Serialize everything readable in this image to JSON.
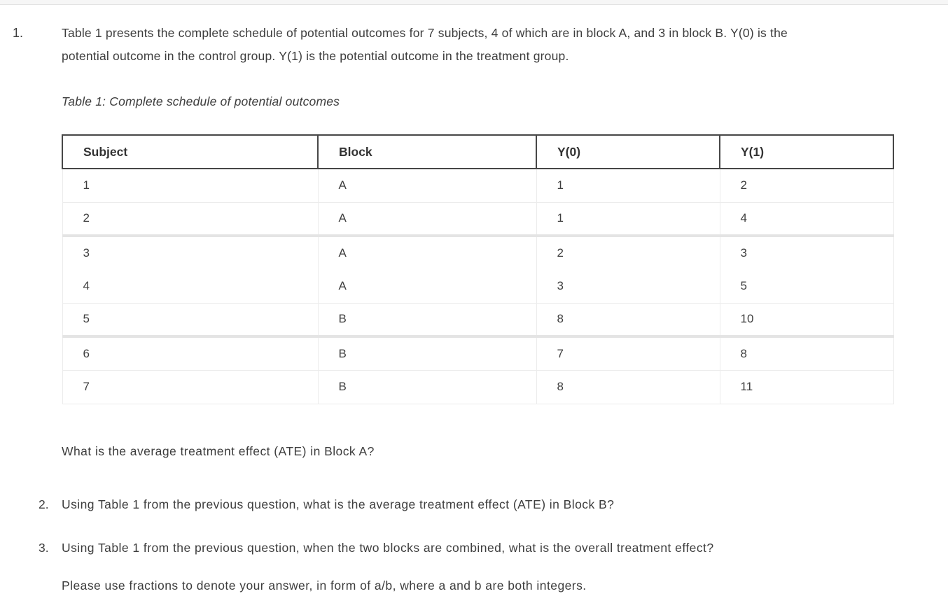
{
  "questions": {
    "q1": {
      "number": "1.",
      "text": "Table 1 presents the complete schedule of potential outcomes for 7 subjects, 4 of which are in block A, and 3 in block B. Y(0) is the potential outcome in the control group. Y(1) is the potential outcome in the treatment group.",
      "caption": "Table 1: Complete schedule of potential outcomes",
      "followup": "What is the average treatment effect (ATE) in Block A?"
    },
    "q2": {
      "number": "2.",
      "text": "Using Table 1 from the previous question, what is the average treatment effect (ATE) in Block B?"
    },
    "q3": {
      "number": "3.",
      "text": "Using Table 1 from the previous question, when the two blocks are combined, what is the overall treatment effect?",
      "note": "Please use fractions to denote your answer, in form of a/b, where a and b are both integers."
    }
  },
  "table": {
    "headers": [
      "Subject",
      "Block",
      "Y(0)",
      "Y(1)"
    ],
    "rows": [
      [
        "1",
        "A",
        "1",
        "2"
      ],
      [
        "2",
        "A",
        "1",
        "4"
      ],
      [
        "3",
        "A",
        "2",
        "3"
      ],
      [
        "4",
        "A",
        "3",
        "5"
      ],
      [
        "5",
        "B",
        "8",
        "10"
      ],
      [
        "6",
        "B",
        "7",
        "8"
      ],
      [
        "7",
        "B",
        "8",
        "11"
      ]
    ]
  },
  "colors": {
    "text": "#3d3d3d",
    "header_border": "#474747",
    "row_separator": "#ececec",
    "thick_separator": "#e4e4e4",
    "top_strip_bg": "#f6f6f6"
  }
}
